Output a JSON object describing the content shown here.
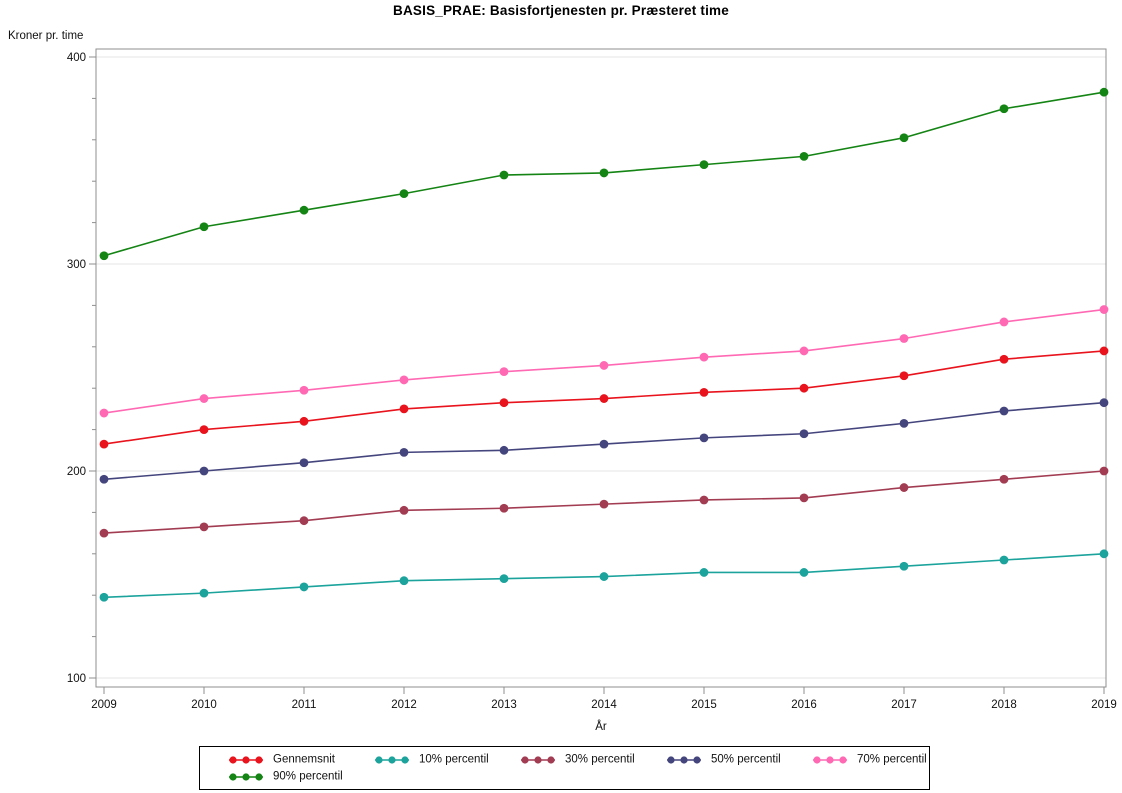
{
  "title": "BASIS_PRAE: Basisfortjenesten pr. Præsteret time",
  "chart_data": {
    "type": "line",
    "x": [
      2009,
      2010,
      2011,
      2012,
      2013,
      2014,
      2015,
      2016,
      2017,
      2018,
      2019
    ],
    "xlabel": "År",
    "ylabel": "Kroner pr. time",
    "ylim": [
      100,
      400
    ],
    "yticks": [
      100,
      200,
      300,
      400
    ],
    "y_minor_step": 20,
    "grid": "horizontal-major",
    "legend_position": "bottom",
    "marker": "filled-circle",
    "series": [
      {
        "name": "Gennemsnit",
        "color": "#e8131c",
        "values": [
          213,
          220,
          224,
          230,
          233,
          235,
          238,
          240,
          246,
          254,
          258
        ]
      },
      {
        "name": "10% percentil",
        "color": "#1ba39c",
        "values": [
          139,
          141,
          144,
          147,
          148,
          149,
          151,
          151,
          154,
          157,
          160
        ]
      },
      {
        "name": "30% percentil",
        "color": "#a23c52",
        "values": [
          170,
          173,
          176,
          181,
          182,
          184,
          186,
          187,
          192,
          196,
          200
        ]
      },
      {
        "name": "50% percentil",
        "color": "#45457e",
        "values": [
          196,
          200,
          204,
          209,
          210,
          213,
          216,
          218,
          223,
          229,
          233
        ]
      },
      {
        "name": "70% percentil",
        "color": "#ff69b4",
        "values": [
          228,
          235,
          239,
          244,
          248,
          251,
          255,
          258,
          264,
          272,
          278
        ]
      },
      {
        "name": "90% percentil",
        "color": "#148414",
        "values": [
          304,
          318,
          326,
          334,
          343,
          344,
          348,
          352,
          361,
          375,
          383
        ]
      }
    ]
  }
}
